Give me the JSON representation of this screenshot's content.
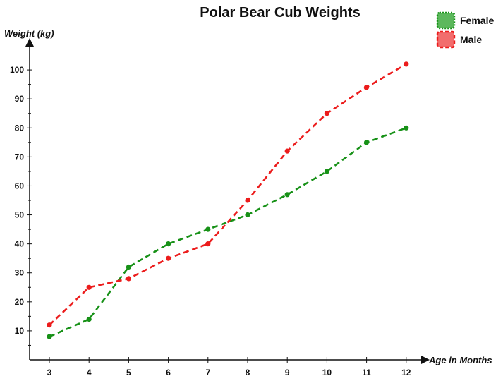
{
  "chart_data": {
    "type": "line",
    "title": "Polar Bear Cub Weights",
    "xlabel": "Age in Months",
    "ylabel": "Weight (kg)",
    "x": [
      3,
      4,
      5,
      6,
      7,
      8,
      9,
      10,
      11,
      12
    ],
    "ylim": [
      0,
      110
    ],
    "yticks": [
      10,
      20,
      30,
      40,
      50,
      60,
      70,
      80,
      90,
      100
    ],
    "grid": false,
    "legend_position": "top-right",
    "series": [
      {
        "name": "Female",
        "color": "#179117",
        "values": [
          8,
          14,
          32,
          40,
          45,
          50,
          57,
          65,
          75,
          80
        ]
      },
      {
        "name": "Male",
        "color": "#ec1c1c",
        "values": [
          12,
          25,
          28,
          35,
          40,
          55,
          72,
          85,
          94,
          102
        ]
      }
    ]
  }
}
